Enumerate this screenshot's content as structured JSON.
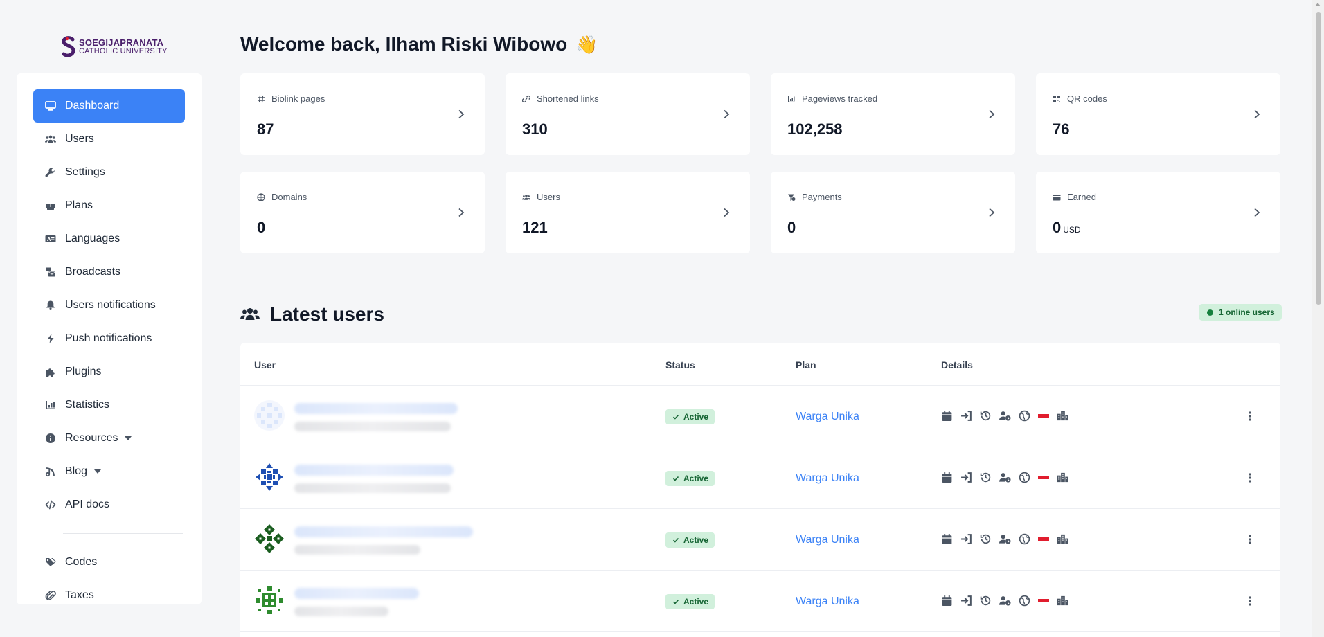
{
  "brand": {
    "line1": "SOEGIJAPRANATA",
    "line2": "CATHOLIC UNIVERSITY",
    "color": "#4a1e6b"
  },
  "sidebar": {
    "items": [
      {
        "label": "Dashboard",
        "icon": "monitor-icon",
        "active": true
      },
      {
        "label": "Users",
        "icon": "users-icon"
      },
      {
        "label": "Settings",
        "icon": "wrench-icon"
      },
      {
        "label": "Plans",
        "icon": "boxes-icon"
      },
      {
        "label": "Languages",
        "icon": "language-icon"
      },
      {
        "label": "Broadcasts",
        "icon": "mail-bulk-icon"
      },
      {
        "label": "Users notifications",
        "icon": "bell-icon"
      },
      {
        "label": "Push notifications",
        "icon": "bolt-icon"
      },
      {
        "label": "Plugins",
        "icon": "puzzle-icon"
      },
      {
        "label": "Statistics",
        "icon": "chart-icon"
      },
      {
        "label": "Resources",
        "icon": "info-icon",
        "dropdown": true
      },
      {
        "label": "Blog",
        "icon": "blog-icon",
        "dropdown": true
      },
      {
        "label": "API docs",
        "icon": "code-icon"
      }
    ],
    "items_after_divider": [
      {
        "label": "Codes",
        "icon": "tags-icon"
      },
      {
        "label": "Taxes",
        "icon": "paperclip-icon"
      }
    ]
  },
  "welcome": {
    "text": "Welcome back, Ilham Riski Wibowo",
    "emoji": "👋"
  },
  "stats": [
    {
      "label": "Biolink pages",
      "value": "87",
      "icon": "hash-icon"
    },
    {
      "label": "Shortened links",
      "value": "310",
      "icon": "link-icon"
    },
    {
      "label": "Pageviews tracked",
      "value": "102,258",
      "icon": "chart-icon"
    },
    {
      "label": "QR codes",
      "value": "76",
      "icon": "qr-icon"
    },
    {
      "label": "Domains",
      "value": "0",
      "icon": "globe-icon"
    },
    {
      "label": "Users",
      "value": "121",
      "icon": "users-icon"
    },
    {
      "label": "Payments",
      "value": "0",
      "icon": "funnel-dollar-icon"
    },
    {
      "label": "Earned",
      "value": "0",
      "unit": "USD",
      "icon": "card-icon"
    }
  ],
  "latest_users": {
    "title": "Latest users",
    "online_badge": "1 online users",
    "columns": {
      "user": "User",
      "status": "Status",
      "plan": "Plan",
      "details": "Details"
    },
    "rows": [
      {
        "status": "Active",
        "plan": "Warga Unika",
        "avatar_color": "#dbe6fb",
        "flag_color": "#e11d2e"
      },
      {
        "status": "Active",
        "plan": "Warga Unika",
        "avatar_color": "#1e4fb3",
        "flag_color": "#e11d2e"
      },
      {
        "status": "Active",
        "plan": "Warga Unika",
        "avatar_color": "#1b5e20",
        "flag_color": "#e11d2e"
      },
      {
        "status": "Active",
        "plan": "Warga Unika",
        "avatar_color": "#2e8b2e",
        "flag_color": "#e11d2e"
      }
    ],
    "detail_icons": [
      "calendar-icon",
      "sign-in-icon",
      "history-icon",
      "user-clock-icon",
      "globe-icon",
      "flag-icon",
      "city-icon"
    ]
  },
  "colors": {
    "accent": "#3b82f6",
    "success_bg": "#d1f0dc",
    "success_text": "#166534"
  }
}
